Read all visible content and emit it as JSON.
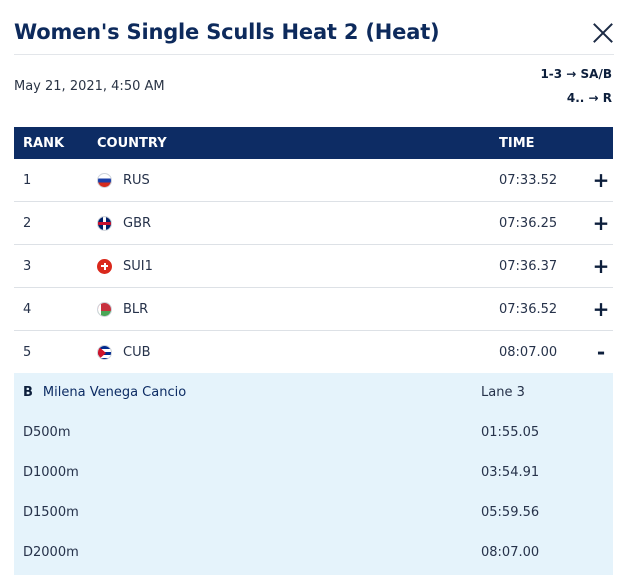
{
  "title": "Women's Single Sculls Heat 2 (Heat)",
  "date": "May 21, 2021, 4:50 AM",
  "progression": [
    "1-3 → SA/B",
    "4.. → R"
  ],
  "table": {
    "headers": {
      "rank": "RANK",
      "country": "COUNTRY",
      "time": "TIME"
    },
    "rows": [
      {
        "rank": "1",
        "flag": "russia-flag-icon",
        "country": "RUS",
        "time": "07:33.52",
        "action": "+"
      },
      {
        "rank": "2",
        "flag": "great-britain-flag-icon",
        "country": "GBR",
        "time": "07:36.25",
        "action": "+"
      },
      {
        "rank": "3",
        "flag": "switzerland-flag-icon",
        "country": "SUI1",
        "time": "07:36.37",
        "action": "+"
      },
      {
        "rank": "4",
        "flag": "belarus-flag-icon",
        "country": "BLR",
        "time": "07:36.52",
        "action": "+"
      },
      {
        "rank": "5",
        "flag": "cuba-flag-icon",
        "country": "CUB",
        "time": "08:07.00",
        "action": "-"
      }
    ]
  },
  "detail": {
    "boat": "B",
    "athlete": "Milena Venega Cancio",
    "lane": "Lane 3",
    "splits": [
      {
        "label": "D500m",
        "time": "01:55.05"
      },
      {
        "label": "D1000m",
        "time": "03:54.91"
      },
      {
        "label": "D1500m",
        "time": "05:59.56"
      },
      {
        "label": "D2000m",
        "time": "08:07.00"
      }
    ]
  },
  "colors": {
    "header_bg": "#0d2c64",
    "detail_bg": "#e5f3fb",
    "title": "#0d2a5c"
  }
}
